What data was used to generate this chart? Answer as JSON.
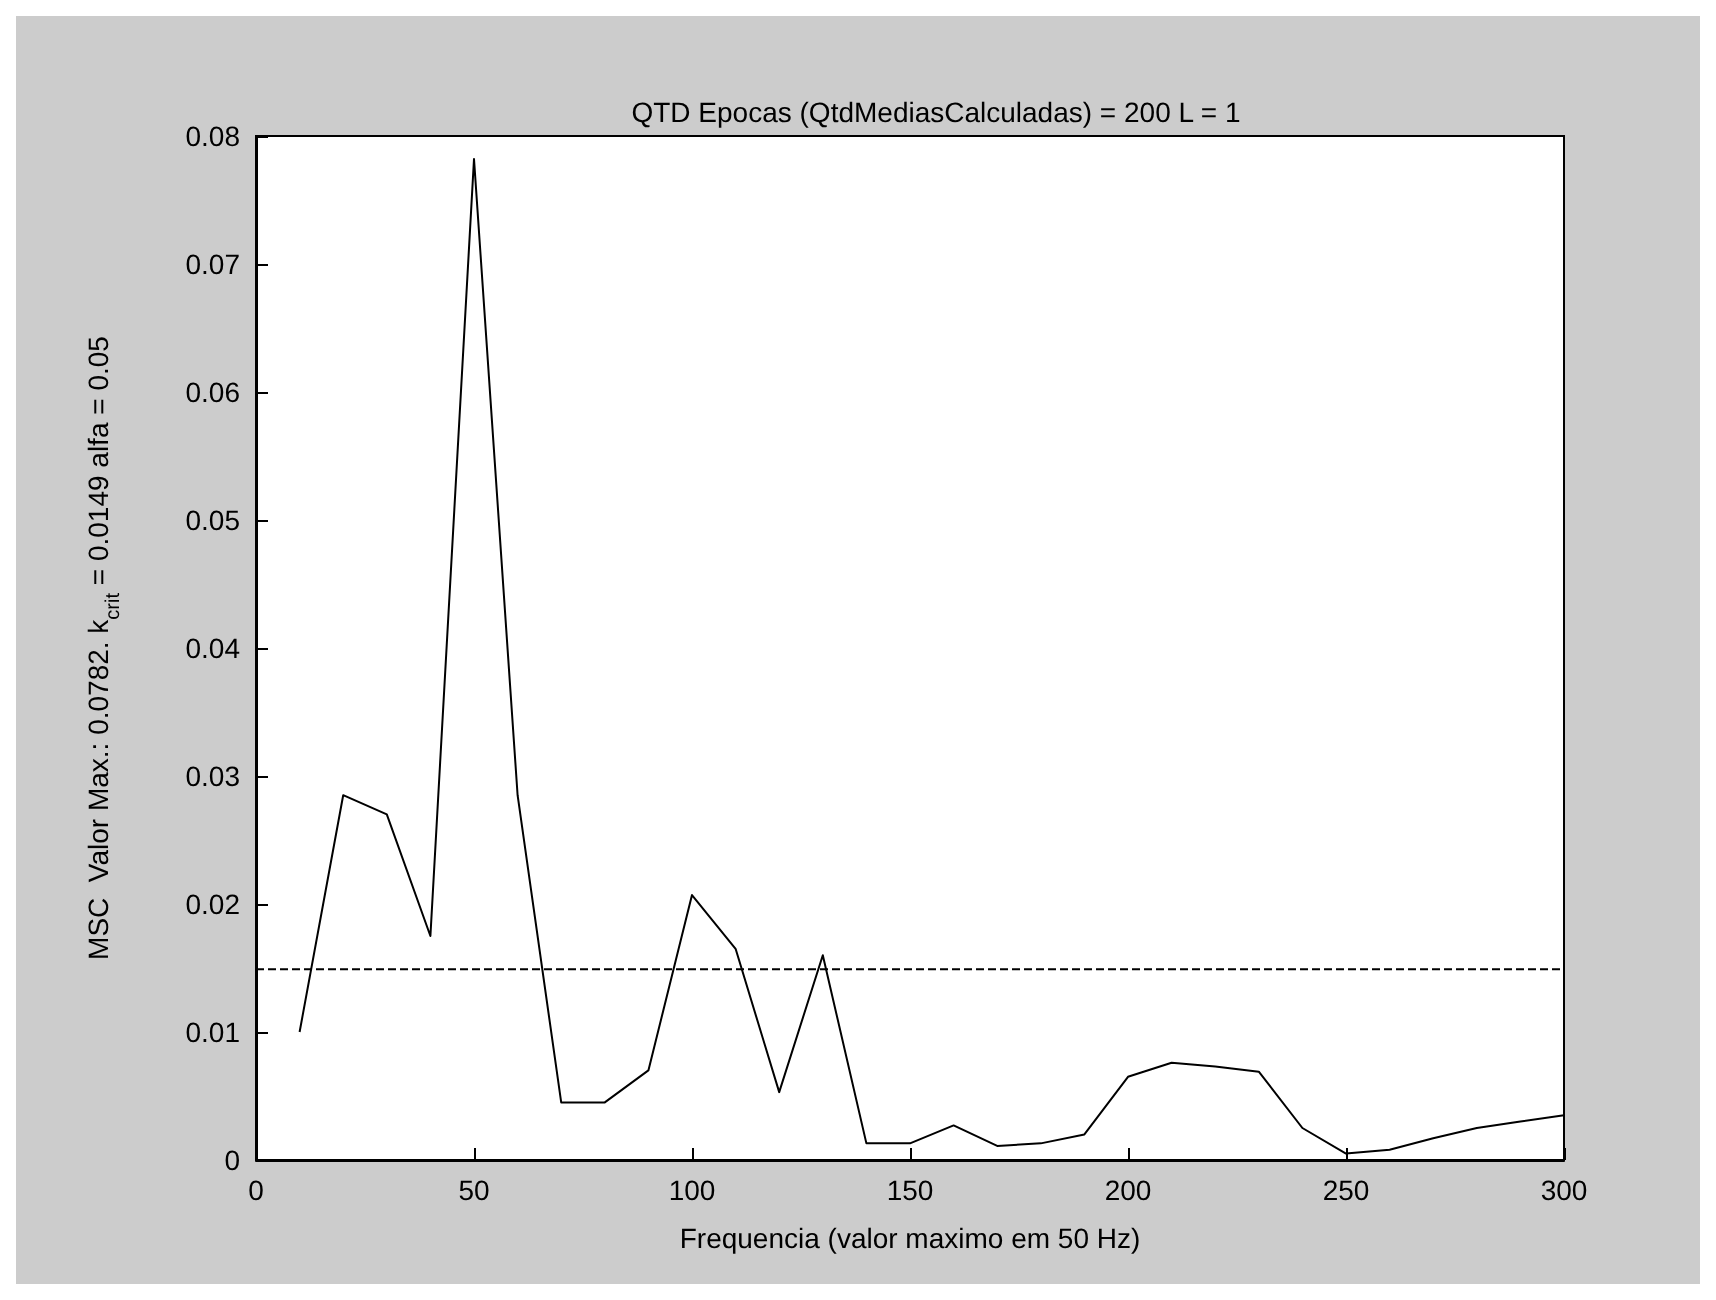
{
  "chart_data": {
    "type": "line",
    "title": "QTD Epocas (QtdMediasCalculadas) = 200 L = 1",
    "xlabel": "Frequencia (valor maximo em 50 Hz)",
    "ylabel": "MSC  Valor Max.: 0.0782. k$_{crit}$ = 0.0149 alfa = 0.05",
    "x": [
      10,
      20,
      30,
      40,
      50,
      60,
      70,
      80,
      90,
      100,
      110,
      120,
      130,
      140,
      150,
      160,
      170,
      180,
      190,
      200,
      210,
      220,
      230,
      240,
      250,
      260,
      270,
      280,
      290,
      300
    ],
    "series": [
      {
        "color": "#000000",
        "values": [
          0.01,
          0.0285,
          0.027,
          0.0175,
          0.0782,
          0.0285,
          0.0045,
          0.0045,
          0.007,
          0.0207,
          0.0165,
          0.0053,
          0.016,
          0.0013,
          0.0013,
          0.0027,
          0.0011,
          0.0013,
          0.002,
          0.0065,
          0.0076,
          0.0073,
          0.0069,
          0.0025,
          0.0005,
          0.0008,
          0.0017,
          0.0025,
          0.003,
          0.0035
        ]
      }
    ],
    "ref_lines": [
      {
        "axis": "y",
        "value": 0.0149,
        "color": "#000000",
        "line_style": "dashed"
      }
    ],
    "xlim": [
      0,
      300
    ],
    "xticks": [
      0,
      50,
      100,
      150,
      200,
      250,
      300
    ],
    "ylim": [
      0,
      0.08
    ],
    "yticks": [
      0,
      0.01,
      0.02,
      0.03,
      0.04,
      0.05,
      0.06,
      0.07,
      0.08
    ],
    "grid": false,
    "marker": "none",
    "line_style": "solid"
  }
}
